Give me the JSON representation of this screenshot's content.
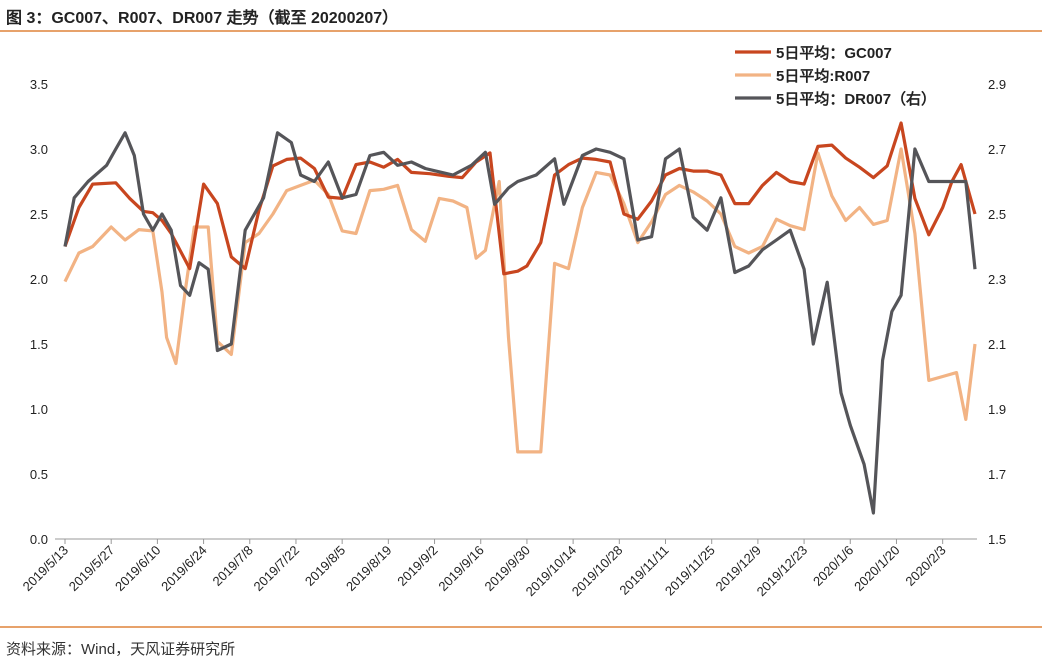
{
  "figure": {
    "title": "图 3：GC007、R007、DR007 走势（截至 20200207）",
    "source": "资料来源：Wind，天风证券研究所"
  },
  "chart_data": {
    "type": "line",
    "categories": [
      "2019/5/13",
      "2019/5/27",
      "2019/6/10",
      "2019/6/24",
      "2019/7/8",
      "2019/7/22",
      "2019/8/5",
      "2019/8/19",
      "2019/9/2",
      "2019/9/16",
      "2019/9/30",
      "2019/10/14",
      "2019/10/28",
      "2019/11/11",
      "2019/11/25",
      "2019/12/9",
      "2019/12/23",
      "2020/1/6",
      "2020/1/20",
      "2020/2/3"
    ],
    "ylim": [
      0,
      3.5
    ],
    "yticks": [
      0.0,
      0.5,
      1.0,
      1.5,
      2.0,
      2.5,
      3.0,
      3.5
    ],
    "ytick_labels": [
      "0.0",
      "0.5",
      "1.0",
      "1.5",
      "2.0",
      "2.5",
      "3.0",
      "3.5"
    ],
    "y2lim": [
      1.5,
      2.9
    ],
    "y2ticks": [
      1.5,
      1.7,
      1.9,
      2.1,
      2.3,
      2.5,
      2.7,
      2.9
    ],
    "y2tick_labels": [
      "1.5",
      "1.7",
      "1.9",
      "2.1",
      "2.3",
      "2.5",
      "2.7",
      "2.9"
    ],
    "legend_position": "top-right",
    "series": [
      {
        "name": "5日平均：GC007",
        "axis": "left",
        "color": "#c8461f",
        "x": [
          0,
          0.3,
          0.6,
          1.1,
          1.4,
          1.7,
          1.9,
          2.1,
          2.3,
          2.7,
          3.0,
          3.3,
          3.6,
          3.9,
          4.2,
          4.5,
          4.8,
          5.1,
          5.4,
          5.7,
          6.0,
          6.3,
          6.6,
          6.9,
          7.2,
          7.5,
          7.9,
          8.3,
          8.6,
          8.9,
          9.2,
          9.5,
          9.8,
          10.0,
          10.3,
          10.6,
          10.9,
          11.2,
          11.5,
          11.8,
          12.1,
          12.4,
          12.7,
          13.0,
          13.3,
          13.6,
          13.9,
          14.2,
          14.5,
          14.8,
          15.1,
          15.4,
          15.7,
          16.0,
          16.3,
          16.6,
          16.9,
          17.2,
          17.5,
          17.8,
          18.1,
          18.4,
          18.7,
          19.0,
          19.2,
          19.4,
          19.7
        ],
        "values": [
          2.25,
          2.55,
          2.73,
          2.74,
          2.62,
          2.52,
          2.51,
          2.45,
          2.35,
          2.08,
          2.73,
          2.58,
          2.17,
          2.08,
          2.53,
          2.87,
          2.92,
          2.93,
          2.85,
          2.63,
          2.62,
          2.88,
          2.9,
          2.86,
          2.92,
          2.82,
          2.81,
          2.79,
          2.78,
          2.9,
          2.97,
          2.04,
          2.06,
          2.1,
          2.28,
          2.8,
          2.88,
          2.93,
          2.92,
          2.9,
          2.5,
          2.46,
          2.6,
          2.8,
          2.85,
          2.83,
          2.83,
          2.8,
          2.58,
          2.58,
          2.72,
          2.82,
          2.75,
          2.73,
          3.02,
          3.03,
          2.93,
          2.86,
          2.78,
          2.87,
          3.2,
          2.62,
          2.34,
          2.55,
          2.75,
          2.88,
          2.5
        ]
      },
      {
        "name": "5日平均:R007",
        "axis": "left",
        "color": "#f2b384",
        "x": [
          0,
          0.3,
          0.6,
          1.0,
          1.3,
          1.6,
          1.9,
          2.1,
          2.2,
          2.4,
          2.6,
          2.8,
          3.1,
          3.3,
          3.6,
          3.9,
          4.2,
          4.5,
          4.8,
          5.1,
          5.4,
          5.7,
          6.0,
          6.3,
          6.6,
          6.9,
          7.2,
          7.5,
          7.8,
          8.1,
          8.4,
          8.7,
          8.9,
          9.1,
          9.4,
          9.6,
          9.8,
          10.0,
          10.3,
          10.6,
          10.9,
          11.2,
          11.5,
          11.8,
          12.1,
          12.4,
          12.7,
          13.0,
          13.3,
          13.6,
          13.9,
          14.2,
          14.5,
          14.8,
          15.1,
          15.4,
          15.7,
          16.0,
          16.3,
          16.6,
          16.9,
          17.2,
          17.5,
          17.8,
          18.1,
          18.4,
          18.7,
          19.0,
          19.3,
          19.5,
          19.7
        ],
        "values": [
          1.98,
          2.2,
          2.25,
          2.4,
          2.3,
          2.38,
          2.37,
          1.9,
          1.55,
          1.35,
          1.9,
          2.4,
          2.4,
          1.52,
          1.42,
          2.28,
          2.35,
          2.5,
          2.68,
          2.72,
          2.76,
          2.65,
          2.37,
          2.35,
          2.68,
          2.69,
          2.72,
          2.38,
          2.29,
          2.62,
          2.6,
          2.55,
          2.16,
          2.22,
          2.75,
          1.55,
          0.67,
          0.67,
          0.67,
          2.12,
          2.08,
          2.55,
          2.82,
          2.8,
          2.58,
          2.28,
          2.44,
          2.65,
          2.72,
          2.67,
          2.6,
          2.5,
          2.25,
          2.2,
          2.25,
          2.46,
          2.41,
          2.38,
          2.97,
          2.64,
          2.45,
          2.55,
          2.42,
          2.45,
          3.0,
          2.35,
          1.22,
          1.25,
          1.28,
          0.92,
          1.5
        ]
      },
      {
        "name": "5日平均：DR007（右）",
        "axis": "right",
        "color": "#555559",
        "x": [
          0,
          0.2,
          0.5,
          0.9,
          1.1,
          1.3,
          1.5,
          1.7,
          1.9,
          2.1,
          2.3,
          2.5,
          2.7,
          2.9,
          3.1,
          3.3,
          3.6,
          3.9,
          4.3,
          4.6,
          4.9,
          5.1,
          5.4,
          5.7,
          6.0,
          6.3,
          6.6,
          6.9,
          7.2,
          7.5,
          7.8,
          8.1,
          8.4,
          8.8,
          9.1,
          9.3,
          9.6,
          9.8,
          10.2,
          10.6,
          10.8,
          11.2,
          11.5,
          11.8,
          12.1,
          12.4,
          12.7,
          13.0,
          13.3,
          13.6,
          13.9,
          14.2,
          14.5,
          14.8,
          15.1,
          15.4,
          15.7,
          16.0,
          16.2,
          16.5,
          16.8,
          17.0,
          17.3,
          17.5,
          17.7,
          17.9,
          18.1,
          18.4,
          18.7,
          19.0,
          19.3,
          19.5,
          19.7
        ],
        "values": [
          2.4,
          2.55,
          2.6,
          2.65,
          2.7,
          2.75,
          2.68,
          2.5,
          2.45,
          2.5,
          2.45,
          2.28,
          2.25,
          2.35,
          2.33,
          2.08,
          2.1,
          2.45,
          2.55,
          2.75,
          2.72,
          2.62,
          2.6,
          2.66,
          2.55,
          2.56,
          2.68,
          2.69,
          2.65,
          2.66,
          2.64,
          2.63,
          2.62,
          2.65,
          2.69,
          2.53,
          2.58,
          2.6,
          2.62,
          2.67,
          2.53,
          2.68,
          2.7,
          2.69,
          2.67,
          2.42,
          2.43,
          2.67,
          2.7,
          2.49,
          2.45,
          2.55,
          2.32,
          2.34,
          2.39,
          2.42,
          2.45,
          2.33,
          2.1,
          2.29,
          1.95,
          1.85,
          1.73,
          1.58,
          2.05,
          2.2,
          2.25,
          2.7,
          2.6,
          2.6,
          2.6,
          2.6,
          2.33
        ]
      }
    ]
  }
}
